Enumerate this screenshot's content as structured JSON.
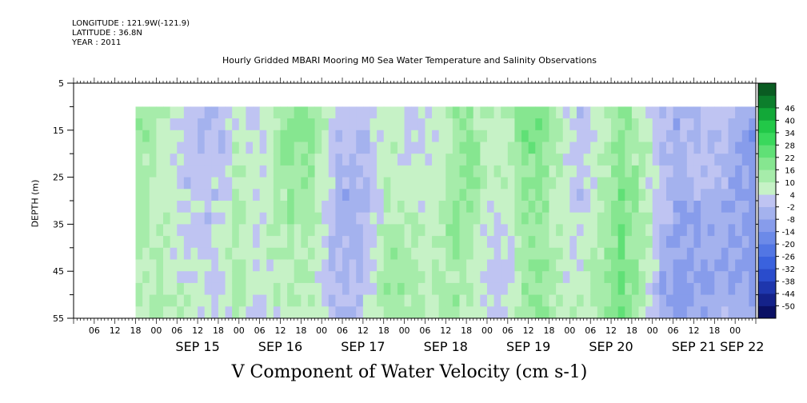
{
  "header": {
    "longitude": "LONGITUDE : 121.9W(-121.9)",
    "latitude": "LATITUDE : 36.8N",
    "year": "YEAR : 2011"
  },
  "chart_data": {
    "type": "heatmap",
    "title": "Hourly Gridded MBARI Mooring M0 Sea Water Temperature and Salinity Observations",
    "ylabel": "DEPTH (m)",
    "variable_label": "V Component of Water Velocity (cm s-1)",
    "y_axis": {
      "range": [
        5,
        55
      ],
      "inverted": true,
      "ticks": [
        5,
        15,
        25,
        35,
        45,
        55
      ],
      "minor_ticks": [
        10,
        20,
        30,
        40,
        50
      ]
    },
    "x_axis": {
      "start": "SEP 14 00:00",
      "end": "SEP 22 06:00",
      "hour_labels": [
        "06",
        "12",
        "18",
        "00",
        "06",
        "12",
        "18",
        "00",
        "06",
        "12",
        "18",
        "00",
        "06",
        "12",
        "18",
        "00",
        "06",
        "12",
        "18",
        "00",
        "06",
        "12",
        "18",
        "00",
        "06",
        "12",
        "18",
        "00",
        "06",
        "12",
        "18",
        "00"
      ],
      "day_labels": [
        "SEP 15",
        "SEP 16",
        "SEP 17",
        "SEP 18",
        "SEP 19",
        "SEP 20",
        "SEP 21",
        "SEP 22"
      ]
    },
    "data_extent": {
      "time_start": "SEP 14 18:00",
      "time_end": "SEP 22 06:00",
      "depth_start": 10,
      "depth_end": 55
    },
    "colorbar": {
      "levels": [
        -50,
        -44,
        -38,
        -32,
        -26,
        -20,
        -14,
        -8,
        -2,
        4,
        10,
        16,
        22,
        28,
        34,
        40,
        46
      ],
      "colors": [
        "#0a1064",
        "#14228a",
        "#1e36ad",
        "#2a4ccc",
        "#3a62de",
        "#5276e4",
        "#6c8ae8",
        "#879ceb",
        "#a4b2ee",
        "#bfc4f2",
        "#c6f2c6",
        "#a6ecaa",
        "#86e690",
        "#60e076",
        "#3ad85c",
        "#22c848",
        "#12a838",
        "#0c7e2c",
        "#0a5c22"
      ]
    },
    "time_profile": [
      {
        "hour": 18,
        "value": 14
      },
      {
        "hour": 22,
        "value": 13
      },
      {
        "hour": 26,
        "value": 11
      },
      {
        "hour": 30,
        "value": 7
      },
      {
        "hour": 34,
        "value": 3
      },
      {
        "hour": 38,
        "value": 1
      },
      {
        "hour": 42,
        "value": 2
      },
      {
        "hour": 46,
        "value": 7
      },
      {
        "hour": 50,
        "value": 3
      },
      {
        "hour": 54,
        "value": 2
      },
      {
        "hour": 58,
        "value": 8
      },
      {
        "hour": 62,
        "value": 12
      },
      {
        "hour": 66,
        "value": 14
      },
      {
        "hour": 70,
        "value": 10
      },
      {
        "hour": 74,
        "value": 3
      },
      {
        "hour": 78,
        "value": -1
      },
      {
        "hour": 82,
        "value": 0
      },
      {
        "hour": 86,
        "value": 6
      },
      {
        "hour": 90,
        "value": 12
      },
      {
        "hour": 94,
        "value": 10
      },
      {
        "hour": 98,
        "value": 6
      },
      {
        "hour": 102,
        "value": 5
      },
      {
        "hour": 106,
        "value": 8
      },
      {
        "hour": 110,
        "value": 12
      },
      {
        "hour": 114,
        "value": 12
      },
      {
        "hour": 118,
        "value": 6
      },
      {
        "hour": 122,
        "value": 4
      },
      {
        "hour": 126,
        "value": 8
      },
      {
        "hour": 130,
        "value": 18
      },
      {
        "hour": 134,
        "value": 20
      },
      {
        "hour": 138,
        "value": 14
      },
      {
        "hour": 142,
        "value": 8
      },
      {
        "hour": 146,
        "value": 4
      },
      {
        "hour": 150,
        "value": 8
      },
      {
        "hour": 154,
        "value": 12
      },
      {
        "hour": 158,
        "value": 18
      },
      {
        "hour": 162,
        "value": 12
      },
      {
        "hour": 166,
        "value": 4
      },
      {
        "hour": 170,
        "value": -6
      },
      {
        "hour": 174,
        "value": -8
      },
      {
        "hour": 178,
        "value": -6
      },
      {
        "hour": 182,
        "value": -3
      },
      {
        "hour": 186,
        "value": -2
      },
      {
        "hour": 190,
        "value": -4
      },
      {
        "hour": 194,
        "value": -6
      },
      {
        "hour": 198,
        "value": -12
      },
      {
        "hour": 202,
        "value": -16
      },
      {
        "hour": 206,
        "value": -14
      }
    ]
  }
}
